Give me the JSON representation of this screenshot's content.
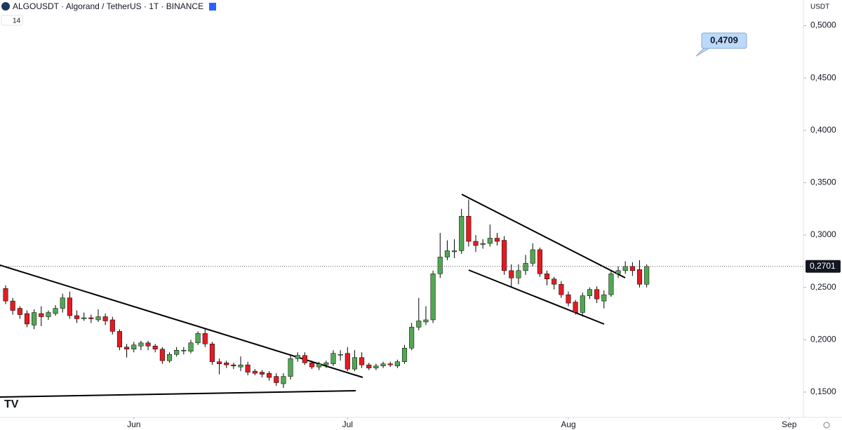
{
  "chart_data": {
    "type": "candlestick",
    "title": "ALGOUSDT · Algorand / TetherUS · 1T · BINANCE",
    "indicator_label": "14",
    "currency": "USDT",
    "up_color": "#53a653",
    "down_color": "#e31b23",
    "open": [
      0.249,
      0.237,
      0.23,
      0.225,
      0.214,
      0.225,
      0.222,
      0.225,
      0.23,
      0.24,
      0.223,
      0.22,
      0.221,
      0.219,
      0.222,
      0.219,
      0.208,
      0.193,
      0.191,
      0.194,
      0.197,
      0.194,
      0.191,
      0.18,
      0.186,
      0.19,
      0.189,
      0.197,
      0.206,
      0.196,
      0.179,
      0.178,
      0.176,
      0.174,
      0.176,
      0.17,
      0.169,
      0.168,
      0.165,
      0.158,
      0.165,
      0.182,
      0.185,
      0.178,
      0.174,
      0.176,
      0.177,
      0.186,
      0.187,
      0.172,
      0.183,
      0.176,
      0.173,
      0.175,
      0.177,
      0.175,
      0.179,
      0.192,
      0.212,
      0.217,
      0.219,
      0.263,
      0.279,
      0.284,
      0.285,
      0.318,
      0.294,
      0.291,
      0.292,
      0.297,
      0.295,
      0.266,
      0.259,
      0.266,
      0.273,
      0.286,
      0.263,
      0.258,
      0.253,
      0.243,
      0.236,
      0.226,
      0.242,
      0.248,
      0.237,
      0.243,
      0.263,
      0.266,
      0.27,
      0.267,
      0.253
    ],
    "high": [
      0.252,
      0.24,
      0.232,
      0.228,
      0.229,
      0.232,
      0.228,
      0.233,
      0.244,
      0.246,
      0.228,
      0.226,
      0.224,
      0.229,
      0.225,
      0.222,
      0.21,
      0.196,
      0.198,
      0.199,
      0.199,
      0.196,
      0.193,
      0.188,
      0.193,
      0.193,
      0.2,
      0.208,
      0.21,
      0.198,
      0.182,
      0.18,
      0.178,
      0.184,
      0.179,
      0.172,
      0.171,
      0.17,
      0.168,
      0.168,
      0.186,
      0.188,
      0.188,
      0.18,
      0.179,
      0.18,
      0.19,
      0.19,
      0.193,
      0.19,
      0.188,
      0.178,
      0.177,
      0.179,
      0.179,
      0.181,
      0.195,
      0.216,
      0.24,
      0.232,
      0.266,
      0.302,
      0.295,
      0.296,
      0.325,
      0.334,
      0.3,
      0.296,
      0.31,
      0.302,
      0.299,
      0.272,
      0.272,
      0.281,
      0.292,
      0.288,
      0.266,
      0.26,
      0.256,
      0.246,
      0.238,
      0.245,
      0.25,
      0.251,
      0.247,
      0.266,
      0.27,
      0.275,
      0.274,
      0.276,
      0.272
    ],
    "low": [
      0.234,
      0.224,
      0.22,
      0.212,
      0.21,
      0.213,
      0.219,
      0.223,
      0.226,
      0.22,
      0.216,
      0.218,
      0.216,
      0.217,
      0.214,
      0.205,
      0.19,
      0.183,
      0.188,
      0.19,
      0.19,
      0.188,
      0.177,
      0.178,
      0.184,
      0.186,
      0.187,
      0.195,
      0.193,
      0.176,
      0.167,
      0.173,
      0.172,
      0.17,
      0.166,
      0.166,
      0.164,
      0.161,
      0.156,
      0.154,
      0.162,
      0.179,
      0.176,
      0.172,
      0.171,
      0.173,
      0.175,
      0.18,
      0.17,
      0.17,
      0.173,
      0.171,
      0.171,
      0.173,
      0.174,
      0.173,
      0.177,
      0.19,
      0.209,
      0.214,
      0.216,
      0.259,
      0.276,
      0.278,
      0.282,
      0.289,
      0.284,
      0.287,
      0.289,
      0.29,
      0.262,
      0.25,
      0.253,
      0.262,
      0.27,
      0.26,
      0.252,
      0.248,
      0.24,
      0.232,
      0.224,
      0.222,
      0.239,
      0.235,
      0.23,
      0.241,
      0.259,
      0.263,
      0.261,
      0.25,
      0.25
    ],
    "close": [
      0.237,
      0.228,
      0.224,
      0.215,
      0.226,
      0.222,
      0.226,
      0.23,
      0.24,
      0.223,
      0.22,
      0.221,
      0.22,
      0.222,
      0.218,
      0.208,
      0.193,
      0.191,
      0.195,
      0.197,
      0.194,
      0.191,
      0.18,
      0.186,
      0.19,
      0.19,
      0.197,
      0.206,
      0.196,
      0.179,
      0.177,
      0.176,
      0.175,
      0.176,
      0.169,
      0.168,
      0.167,
      0.164,
      0.159,
      0.165,
      0.182,
      0.185,
      0.178,
      0.174,
      0.177,
      0.178,
      0.187,
      0.186,
      0.172,
      0.183,
      0.176,
      0.173,
      0.175,
      0.177,
      0.176,
      0.179,
      0.192,
      0.212,
      0.218,
      0.219,
      0.263,
      0.279,
      0.285,
      0.285,
      0.318,
      0.294,
      0.29,
      0.292,
      0.297,
      0.294,
      0.266,
      0.259,
      0.266,
      0.273,
      0.286,
      0.263,
      0.258,
      0.253,
      0.243,
      0.235,
      0.226,
      0.242,
      0.248,
      0.239,
      0.243,
      0.263,
      0.266,
      0.27,
      0.266,
      0.253,
      0.27
    ],
    "xlim": [
      -0.79,
      112
    ],
    "xticks": [
      {
        "value": 18,
        "label": "Jun"
      },
      {
        "value": 48,
        "label": "Jul"
      },
      {
        "value": 79,
        "label": "Aug"
      },
      {
        "value": 110,
        "label": "Sep"
      }
    ],
    "ylim": [
      0.1225,
      0.5245
    ],
    "yticks": [
      {
        "value": 0.15,
        "label": "0,1500"
      },
      {
        "value": 0.2,
        "label": "0,2000"
      },
      {
        "value": 0.25,
        "label": "0,2500"
      },
      {
        "value": 0.3,
        "label": "0,3000"
      },
      {
        "value": 0.35,
        "label": "0,3500"
      },
      {
        "value": 0.4,
        "label": "0,4000"
      },
      {
        "value": 0.45,
        "label": "0,4500"
      },
      {
        "value": 0.5,
        "label": "0,5000"
      }
    ],
    "last_price": {
      "value": 0.2701,
      "label": "0,2701"
    },
    "callout": {
      "value": 0.4709,
      "label": "0,4709"
    }
  }
}
